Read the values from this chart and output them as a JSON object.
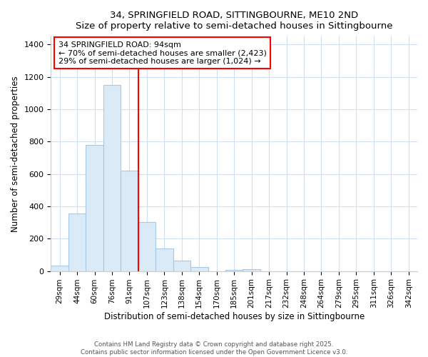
{
  "title_line1": "34, SPRINGFIELD ROAD, SITTINGBOURNE, ME10 2ND",
  "title_line2": "Size of property relative to semi-detached houses in Sittingbourne",
  "xlabel": "Distribution of semi-detached houses by size in Sittingbourne",
  "ylabel": "Number of semi-detached properties",
  "categories": [
    "29sqm",
    "44sqm",
    "60sqm",
    "76sqm",
    "91sqm",
    "107sqm",
    "123sqm",
    "138sqm",
    "154sqm",
    "170sqm",
    "185sqm",
    "201sqm",
    "217sqm",
    "232sqm",
    "248sqm",
    "264sqm",
    "279sqm",
    "295sqm",
    "311sqm",
    "326sqm",
    "342sqm"
  ],
  "values": [
    35,
    355,
    780,
    1150,
    620,
    305,
    140,
    65,
    25,
    0,
    5,
    12,
    0,
    0,
    0,
    0,
    0,
    0,
    0,
    0,
    0
  ],
  "bar_color": "#daeaf7",
  "bar_edge_color": "#a8c8e8",
  "red_line_index": 4,
  "annotation_text_line1": "34 SPRINGFIELD ROAD: 94sqm",
  "annotation_text_line2": "← 70% of semi-detached houses are smaller (2,423)",
  "annotation_text_line3": "29% of semi-detached houses are larger (1,024) →",
  "ylim": [
    0,
    1450
  ],
  "yticks": [
    0,
    200,
    400,
    600,
    800,
    1000,
    1200,
    1400
  ],
  "footnote1": "Contains HM Land Registry data © Crown copyright and database right 2025.",
  "footnote2": "Contains public sector information licensed under the Open Government Licence v3.0.",
  "bg_color": "#ffffff",
  "grid_color": "#d0dff0"
}
